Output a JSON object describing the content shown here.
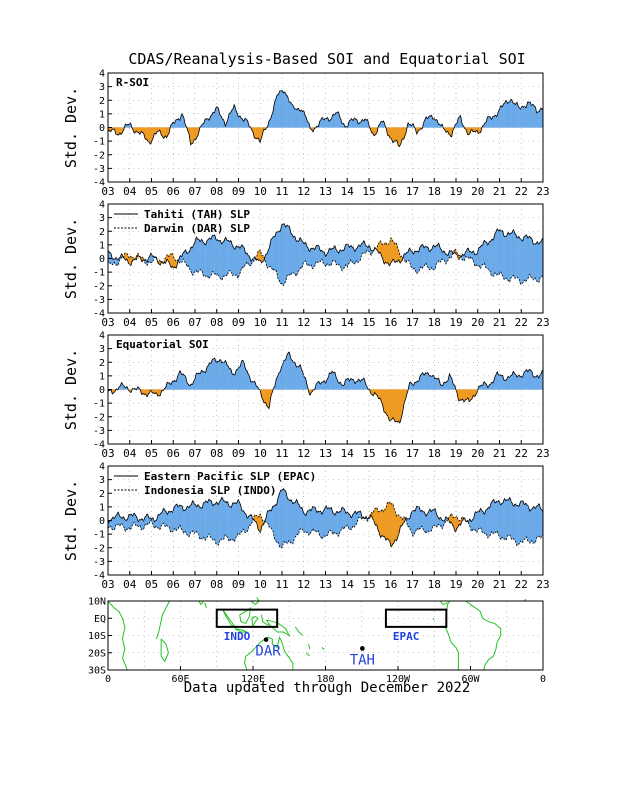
{
  "page": {
    "title": "CDAS/Reanalysis-Based SOI and Equatorial SOI",
    "footer": "Data updated through December 2022"
  },
  "colors": {
    "positive": "#6aaaea",
    "negative": "#ef9a1f",
    "line": "#000000",
    "grid": "#9a9a9a",
    "coast": "#22c422",
    "box": "#000000",
    "map_label": "#2244dd"
  },
  "x_ticks": [
    "03",
    "04",
    "05",
    "06",
    "07",
    "08",
    "09",
    "10",
    "11",
    "12",
    "13",
    "14",
    "15",
    "16",
    "17",
    "18",
    "19",
    "20",
    "21",
    "22",
    "23"
  ],
  "y_ticks": [
    "4",
    "3",
    "2",
    "1",
    "0",
    "-1",
    "-2",
    "-3",
    "-4"
  ],
  "chart_data": [
    {
      "type": "area",
      "label": "R-SOI",
      "ylabel": "Std. Dev.",
      "xlim": [
        2003,
        2023
      ],
      "ylim": [
        -4,
        4
      ],
      "grid": true,
      "series": [
        {
          "x": [
            2003.0,
            2003.5,
            2004.0,
            2004.5,
            2004.9,
            2005.3,
            2005.7,
            2006.0,
            2006.4,
            2006.8,
            2007.2,
            2007.6,
            2008.0,
            2008.4,
            2008.8,
            2009.3,
            2009.8,
            2010.0,
            2010.4,
            2010.8,
            2011.1,
            2011.5,
            2011.9,
            2012.3,
            2012.7,
            2013.1,
            2013.5,
            2013.9,
            2014.3,
            2014.8,
            2015.2,
            2015.6,
            2016.0,
            2016.4,
            2016.8,
            2017.2,
            2017.6,
            2018.0,
            2018.4,
            2018.8,
            2019.2,
            2019.6,
            2020.0,
            2020.4,
            2020.8,
            2021.1,
            2021.5,
            2021.9,
            2022.3,
            2022.7,
            2023.0
          ],
          "values": [
            -0.3,
            -0.4,
            0.2,
            -0.5,
            -1.0,
            -0.4,
            -0.6,
            0.2,
            1.1,
            -1.2,
            -0.3,
            0.8,
            1.3,
            0.4,
            1.4,
            0.5,
            -0.6,
            -1.1,
            0.5,
            2.3,
            2.9,
            1.3,
            1.5,
            -0.2,
            0.3,
            0.7,
            1.0,
            0.2,
            0.5,
            0.6,
            -0.5,
            0.4,
            -0.7,
            -1.5,
            0.3,
            -0.3,
            0.5,
            0.9,
            -0.2,
            -0.4,
            0.7,
            -0.5,
            -0.3,
            0.4,
            1.0,
            1.4,
            2.2,
            1.3,
            1.9,
            1.2,
            1.6
          ]
        }
      ]
    },
    {
      "type": "area",
      "label": "",
      "ylabel": "Std. Dev.",
      "xlim": [
        2003,
        2023
      ],
      "ylim": [
        -4,
        4
      ],
      "grid": true,
      "legend": [
        "Tahiti (TAH) SLP",
        "Darwin (DAR) SLP"
      ],
      "series": [
        {
          "name": "Tahiti (TAH) SLP",
          "x": [
            2003.0,
            2004.0,
            2005.0,
            2006.0,
            2007.0,
            2008.0,
            2009.0,
            2010.0,
            2011.0,
            2012.0,
            2013.0,
            2014.0,
            2015.0,
            2016.0,
            2017.0,
            2018.0,
            2019.0,
            2020.0,
            2021.0,
            2022.0,
            2023.0
          ],
          "values": [
            0.3,
            -0.2,
            0.1,
            -0.6,
            1.2,
            1.5,
            0.9,
            -0.4,
            2.6,
            1.0,
            0.5,
            0.8,
            1.0,
            -0.5,
            0.6,
            0.9,
            0.2,
            0.6,
            2.0,
            1.6,
            1.1
          ]
        },
        {
          "name": "Darwin (DAR) SLP",
          "x": [
            2003.0,
            2004.0,
            2005.0,
            2006.0,
            2007.0,
            2008.0,
            2009.0,
            2010.0,
            2011.0,
            2012.0,
            2013.0,
            2014.0,
            2015.0,
            2016.0,
            2017.0,
            2018.0,
            2019.0,
            2020.0,
            2021.0,
            2022.0,
            2023.0
          ],
          "values": [
            -0.6,
            0.3,
            -0.3,
            0.2,
            -1.0,
            -1.3,
            -1.1,
            0.4,
            -1.8,
            -0.5,
            -0.3,
            -0.6,
            0.5,
            1.4,
            -0.8,
            -0.6,
            0.4,
            -0.4,
            -1.3,
            -1.6,
            -1.4
          ]
        }
      ]
    },
    {
      "type": "area",
      "label": "Equatorial SOI",
      "ylabel": "Std. Dev.",
      "xlim": [
        2003,
        2023
      ],
      "ylim": [
        -4,
        4
      ],
      "grid": true,
      "series": [
        {
          "x": [
            2003.0,
            2003.5,
            2004.0,
            2004.6,
            2005.2,
            2005.8,
            2006.3,
            2006.8,
            2007.3,
            2007.7,
            2008.2,
            2008.7,
            2009.2,
            2009.6,
            2010.0,
            2010.4,
            2010.9,
            2011.3,
            2011.8,
            2012.3,
            2012.8,
            2013.3,
            2013.8,
            2014.3,
            2014.8,
            2015.2,
            2015.6,
            2016.0,
            2016.4,
            2016.9,
            2017.3,
            2017.8,
            2018.3,
            2018.7,
            2019.1,
            2019.6,
            2020.0,
            2020.5,
            2020.9,
            2021.4,
            2021.9,
            2022.4,
            2022.8,
            2023.0
          ],
          "values": [
            -0.3,
            0.2,
            0.1,
            -0.2,
            -0.4,
            0.3,
            1.2,
            0.4,
            1.3,
            1.9,
            2.3,
            1.2,
            1.9,
            0.8,
            -0.3,
            -1.3,
            1.6,
            2.5,
            1.7,
            -0.2,
            0.5,
            1.2,
            0.4,
            0.8,
            0.5,
            -0.3,
            -1.0,
            -2.4,
            -2.3,
            0.4,
            0.8,
            1.3,
            0.3,
            1.0,
            -0.5,
            -1.0,
            0.1,
            0.4,
            1.0,
            0.9,
            1.1,
            1.3,
            1.0,
            1.1
          ]
        }
      ]
    },
    {
      "type": "area",
      "label": "",
      "ylabel": "Std. Dev.",
      "xlim": [
        2003,
        2023
      ],
      "ylim": [
        -4,
        4
      ],
      "grid": true,
      "legend": [
        "Eastern Pacific SLP (EPAC)",
        "Indonesia SLP (INDO)"
      ],
      "series": [
        {
          "name": "Eastern Pacific SLP (EPAC)",
          "x": [
            2003.0,
            2004.0,
            2005.0,
            2006.0,
            2007.0,
            2008.0,
            2009.0,
            2010.0,
            2011.0,
            2012.0,
            2013.0,
            2014.0,
            2015.0,
            2016.0,
            2017.0,
            2018.0,
            2019.0,
            2020.0,
            2021.0,
            2022.0,
            2023.0
          ],
          "values": [
            0.2,
            0.3,
            0.1,
            0.9,
            1.1,
            1.4,
            1.2,
            -0.6,
            2.2,
            0.7,
            0.8,
            0.6,
            0.3,
            -1.9,
            0.8,
            0.6,
            -0.5,
            0.5,
            1.5,
            1.2,
            0.8
          ]
        },
        {
          "name": "Indonesia SLP (INDO)",
          "x": [
            2003.0,
            2004.0,
            2005.0,
            2006.0,
            2007.0,
            2008.0,
            2009.0,
            2010.0,
            2011.0,
            2012.0,
            2013.0,
            2014.0,
            2015.0,
            2016.0,
            2017.0,
            2018.0,
            2019.0,
            2020.0,
            2021.0,
            2022.0,
            2023.0
          ],
          "values": [
            -0.4,
            -0.5,
            -0.3,
            -0.6,
            -1.0,
            -1.5,
            -1.2,
            0.5,
            -2.0,
            -0.7,
            -1.1,
            -0.6,
            0.4,
            1.2,
            -0.8,
            -0.6,
            0.4,
            -0.8,
            -1.1,
            -1.6,
            -1.3
          ]
        }
      ]
    }
  ],
  "map": {
    "y_ticks": [
      "10N",
      "EQ",
      "10S",
      "20S",
      "30S"
    ],
    "x_ticks": [
      "0",
      "60E",
      "120E",
      "180",
      "120W",
      "60W",
      "0"
    ],
    "boxes": [
      {
        "label": "INDO",
        "lon": [
          90,
          140
        ],
        "lat": [
          -5,
          5
        ]
      },
      {
        "label": "EPAC",
        "lon": [
          -130,
          -80
        ],
        "lat": [
          -5,
          5
        ]
      }
    ],
    "stations": [
      {
        "label": "DAR",
        "lon": 130.8,
        "lat": -12.4
      },
      {
        "label": "TAH",
        "lon": -149.5,
        "lat": -17.5
      }
    ]
  }
}
